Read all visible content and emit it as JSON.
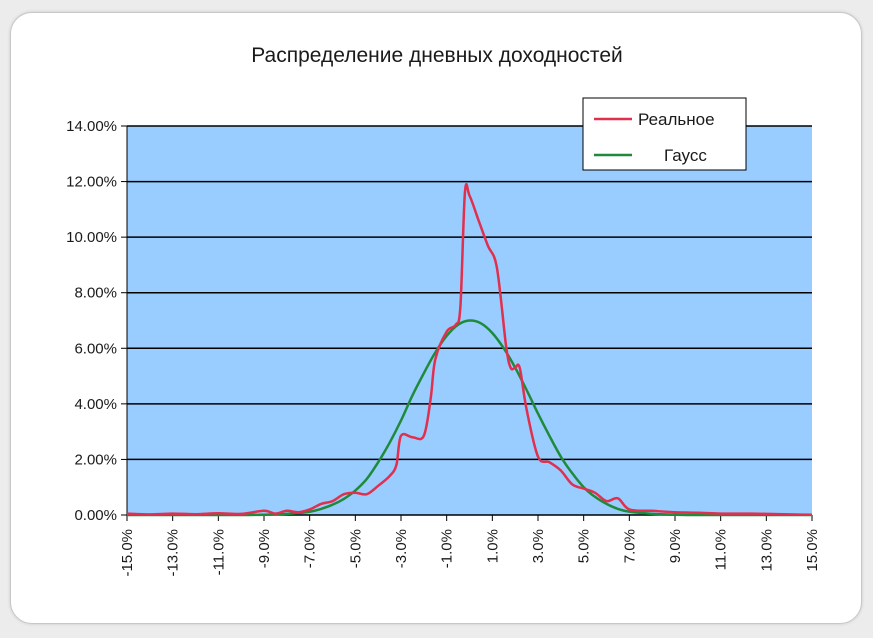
{
  "chart_data": {
    "type": "line",
    "title": "Распределение дневных доходностей",
    "xlabel": "",
    "ylabel": "",
    "x_ticks": [
      "-15.0%",
      "-13.0%",
      "-11.0%",
      "-9.0%",
      "-7.0%",
      "-5.0%",
      "-3.0%",
      "-1.0%",
      "1.0%",
      "3.0%",
      "5.0%",
      "7.0%",
      "9.0%",
      "11.0%",
      "13.0%",
      "15.0%"
    ],
    "y_ticks": [
      "0.00%",
      "2.00%",
      "4.00%",
      "6.00%",
      "8.00%",
      "10.00%",
      "12.00%",
      "14.00%"
    ],
    "xlim": [
      -15,
      15
    ],
    "ylim": [
      0,
      14
    ],
    "grid": true,
    "plot_background": "#99ccff",
    "legend_position": "top-right",
    "series": [
      {
        "name": "Реальное",
        "color": "#e0304e",
        "x": [
          -15,
          -14,
          -13,
          -12,
          -11,
          -10,
          -9,
          -8.5,
          -8,
          -7.5,
          -7,
          -6.5,
          -6,
          -5.5,
          -5,
          -4.5,
          -4,
          -3.5,
          -3.2,
          -3,
          -2.5,
          -2,
          -1.7,
          -1.5,
          -1,
          -0.6,
          -0.4,
          -0.2,
          0,
          0.4,
          0.8,
          1.2,
          1.6,
          1.8,
          2.0,
          2.2,
          2.5,
          3,
          3.5,
          4,
          4.5,
          5,
          5.5,
          6,
          6.5,
          7,
          8,
          9,
          10,
          11,
          12,
          13,
          14,
          15
        ],
        "values": [
          0.05,
          0.02,
          0.05,
          0.03,
          0.06,
          0.04,
          0.15,
          0.05,
          0.15,
          0.1,
          0.2,
          0.4,
          0.5,
          0.75,
          0.8,
          0.75,
          1.05,
          1.4,
          1.8,
          2.85,
          2.8,
          2.85,
          4.2,
          5.6,
          6.6,
          6.85,
          7.5,
          11.6,
          11.5,
          10.6,
          9.7,
          8.9,
          6.1,
          5.3,
          5.3,
          5.3,
          3.8,
          2.1,
          1.9,
          1.6,
          1.1,
          0.95,
          0.8,
          0.5,
          0.6,
          0.2,
          0.15,
          0.1,
          0.08,
          0.05,
          0.05,
          0.04,
          0.02,
          0.01
        ]
      },
      {
        "name": "Гаусс",
        "color": "#1f8a3a",
        "x": [
          -15,
          -14,
          -13,
          -12,
          -11,
          -10,
          -9,
          -8,
          -7,
          -6.5,
          -6,
          -5.5,
          -5,
          -4.5,
          -4,
          -3.5,
          -3,
          -2.5,
          -2,
          -1.5,
          -1,
          -0.5,
          0,
          0.5,
          1,
          1.5,
          2,
          2.5,
          3,
          3.5,
          4,
          4.5,
          5,
          5.5,
          6,
          6.5,
          7,
          8,
          9,
          10,
          11,
          12,
          13,
          14,
          15
        ],
        "values": [
          0,
          0,
          0,
          0,
          0,
          0,
          0.01,
          0.04,
          0.12,
          0.22,
          0.37,
          0.58,
          0.88,
          1.3,
          1.9,
          2.6,
          3.4,
          4.3,
          5.1,
          5.85,
          6.45,
          6.85,
          7.0,
          6.9,
          6.55,
          6.0,
          5.3,
          4.5,
          3.65,
          2.85,
          2.1,
          1.5,
          1.0,
          0.65,
          0.4,
          0.22,
          0.12,
          0.04,
          0.01,
          0,
          0,
          0,
          0,
          0,
          0
        ]
      }
    ]
  }
}
